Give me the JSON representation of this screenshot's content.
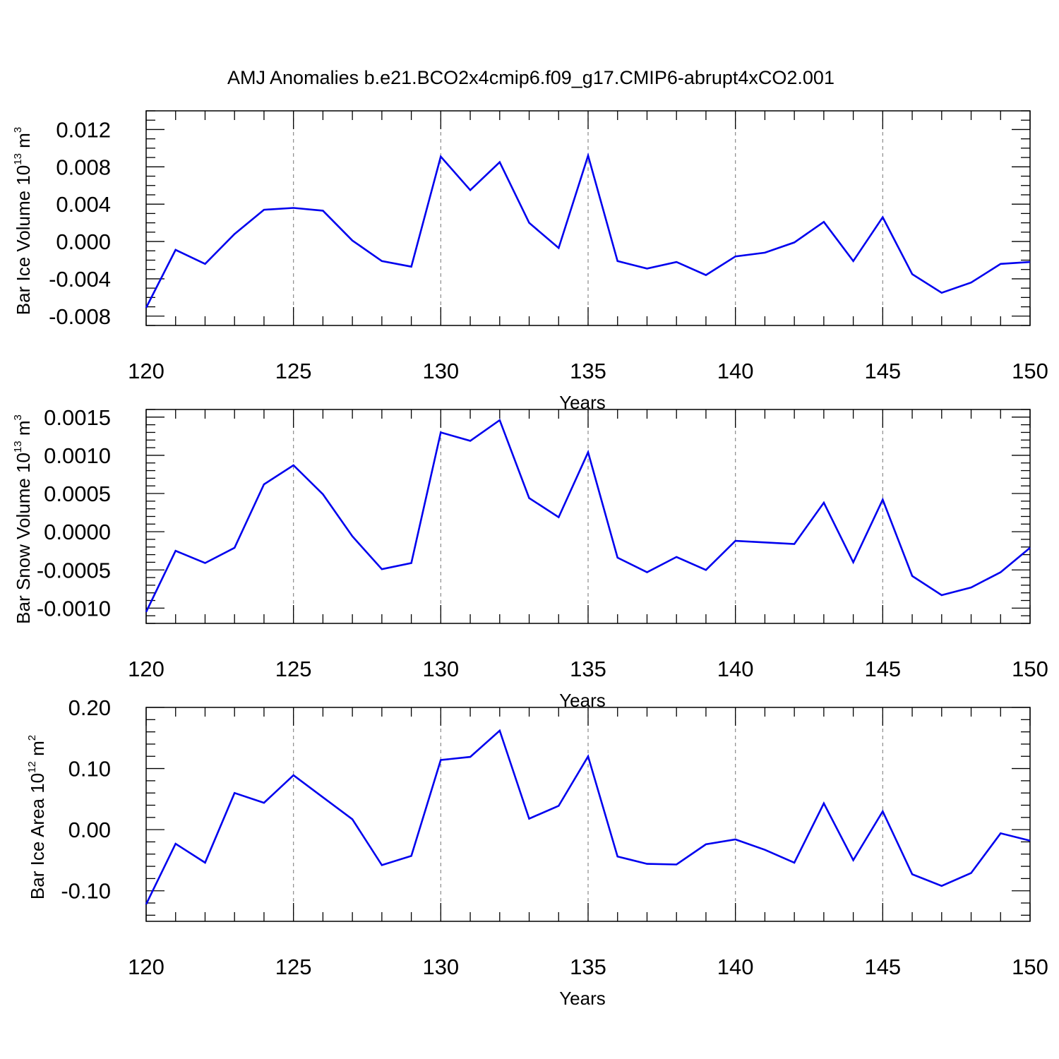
{
  "title": "AMJ Anomalies b.e21.BCO2x4cmip6.f09_g17.CMIP6-abrupt4xCO2.001",
  "line_color": "#0000ee",
  "chart_data": [
    {
      "type": "line",
      "xlabel": "Years",
      "ylabel": {
        "main": "Bar Ice Volume 10",
        "sup1": "13",
        "mid": " m",
        "sup2": "3"
      },
      "xlim": [
        120,
        150
      ],
      "ylim": [
        -0.009,
        0.014
      ],
      "xticks": [
        120,
        125,
        130,
        135,
        140,
        145,
        150
      ],
      "xtick_labels": [
        "120",
        "125",
        "130",
        "135",
        "140",
        "145",
        "150"
      ],
      "yticks": [
        -0.008,
        -0.004,
        0.0,
        0.004,
        0.008,
        0.012
      ],
      "ytick_labels": [
        "-0.008",
        "-0.004",
        "0.000",
        "0.004",
        "0.008",
        "0.012"
      ],
      "yminor": 0.001,
      "x": [
        120,
        121,
        122,
        123,
        124,
        125,
        126,
        127,
        128,
        129,
        130,
        131,
        132,
        133,
        134,
        135,
        136,
        137,
        138,
        139,
        140,
        141,
        142,
        143,
        144,
        145,
        146,
        147,
        148,
        149,
        150
      ],
      "y": [
        -0.0071,
        -0.0009,
        -0.0024,
        0.0008,
        0.0034,
        0.0036,
        0.0033,
        0.0001,
        -0.0021,
        -0.0027,
        0.0091,
        0.0055,
        0.0085,
        0.002,
        -0.0007,
        0.0092,
        -0.0021,
        -0.0029,
        -0.0022,
        -0.0036,
        -0.0016,
        -0.0012,
        -0.0001,
        0.0021,
        -0.0021,
        0.0026,
        -0.0035,
        -0.0055,
        -0.0044,
        -0.0024,
        -0.0022
      ]
    },
    {
      "type": "line",
      "xlabel": "Years",
      "ylabel": {
        "main": "Bar Snow Volume 10",
        "sup1": "13",
        "mid": " m",
        "sup2": "3"
      },
      "xlim": [
        120,
        150
      ],
      "ylim": [
        -0.0012,
        0.0016
      ],
      "xticks": [
        120,
        125,
        130,
        135,
        140,
        145,
        150
      ],
      "xtick_labels": [
        "120",
        "125",
        "130",
        "135",
        "140",
        "145",
        "150"
      ],
      "yticks": [
        -0.001,
        -0.0005,
        0.0,
        0.0005,
        0.001,
        0.0015
      ],
      "ytick_labels": [
        "-0.0010",
        "-0.0005",
        "0.0000",
        "0.0005",
        "0.0010",
        "0.0015"
      ],
      "yminor": 0.0001,
      "x": [
        120,
        121,
        122,
        123,
        124,
        125,
        126,
        127,
        128,
        129,
        130,
        131,
        132,
        133,
        134,
        135,
        136,
        137,
        138,
        139,
        140,
        141,
        142,
        143,
        144,
        145,
        146,
        147,
        148,
        149,
        150
      ],
      "y": [
        -0.00105,
        -0.00025,
        -0.00041,
        -0.00021,
        0.00062,
        0.00087,
        0.00049,
        -6e-05,
        -0.00049,
        -0.00041,
        0.0013,
        0.00119,
        0.00146,
        0.00044,
        0.00019,
        0.00104,
        -0.00034,
        -0.00053,
        -0.00033,
        -0.0005,
        -0.00012,
        -0.00014,
        -0.00016,
        0.00038,
        -0.0004,
        0.00042,
        -0.00058,
        -0.00083,
        -0.00073,
        -0.00053,
        -0.00021
      ]
    },
    {
      "type": "line",
      "xlabel": "Years",
      "ylabel": {
        "main": "Bar Ice Area 10",
        "sup1": "12",
        "mid": " m",
        "sup2": "2"
      },
      "xlim": [
        120,
        150
      ],
      "ylim": [
        -0.15,
        0.2
      ],
      "xticks": [
        120,
        125,
        130,
        135,
        140,
        145,
        150
      ],
      "xtick_labels": [
        "120",
        "125",
        "130",
        "135",
        "140",
        "145",
        "150"
      ],
      "yticks": [
        -0.1,
        0.0,
        0.1,
        0.2
      ],
      "ytick_labels": [
        "-0.10",
        "0.00",
        "0.10",
        "0.20"
      ],
      "yminor": 0.02,
      "x": [
        120,
        121,
        122,
        123,
        124,
        125,
        126,
        127,
        128,
        129,
        130,
        131,
        132,
        133,
        134,
        135,
        136,
        137,
        138,
        139,
        140,
        141,
        142,
        143,
        144,
        145,
        146,
        147,
        148,
        149,
        150
      ],
      "y": [
        -0.122,
        -0.023,
        -0.054,
        0.06,
        0.044,
        0.089,
        0.053,
        0.017,
        -0.058,
        -0.043,
        0.114,
        0.119,
        0.162,
        0.018,
        0.039,
        0.12,
        -0.044,
        -0.056,
        -0.057,
        -0.024,
        -0.016,
        -0.033,
        -0.054,
        0.043,
        -0.05,
        0.03,
        -0.073,
        -0.092,
        -0.071,
        -0.006,
        -0.018
      ]
    }
  ]
}
